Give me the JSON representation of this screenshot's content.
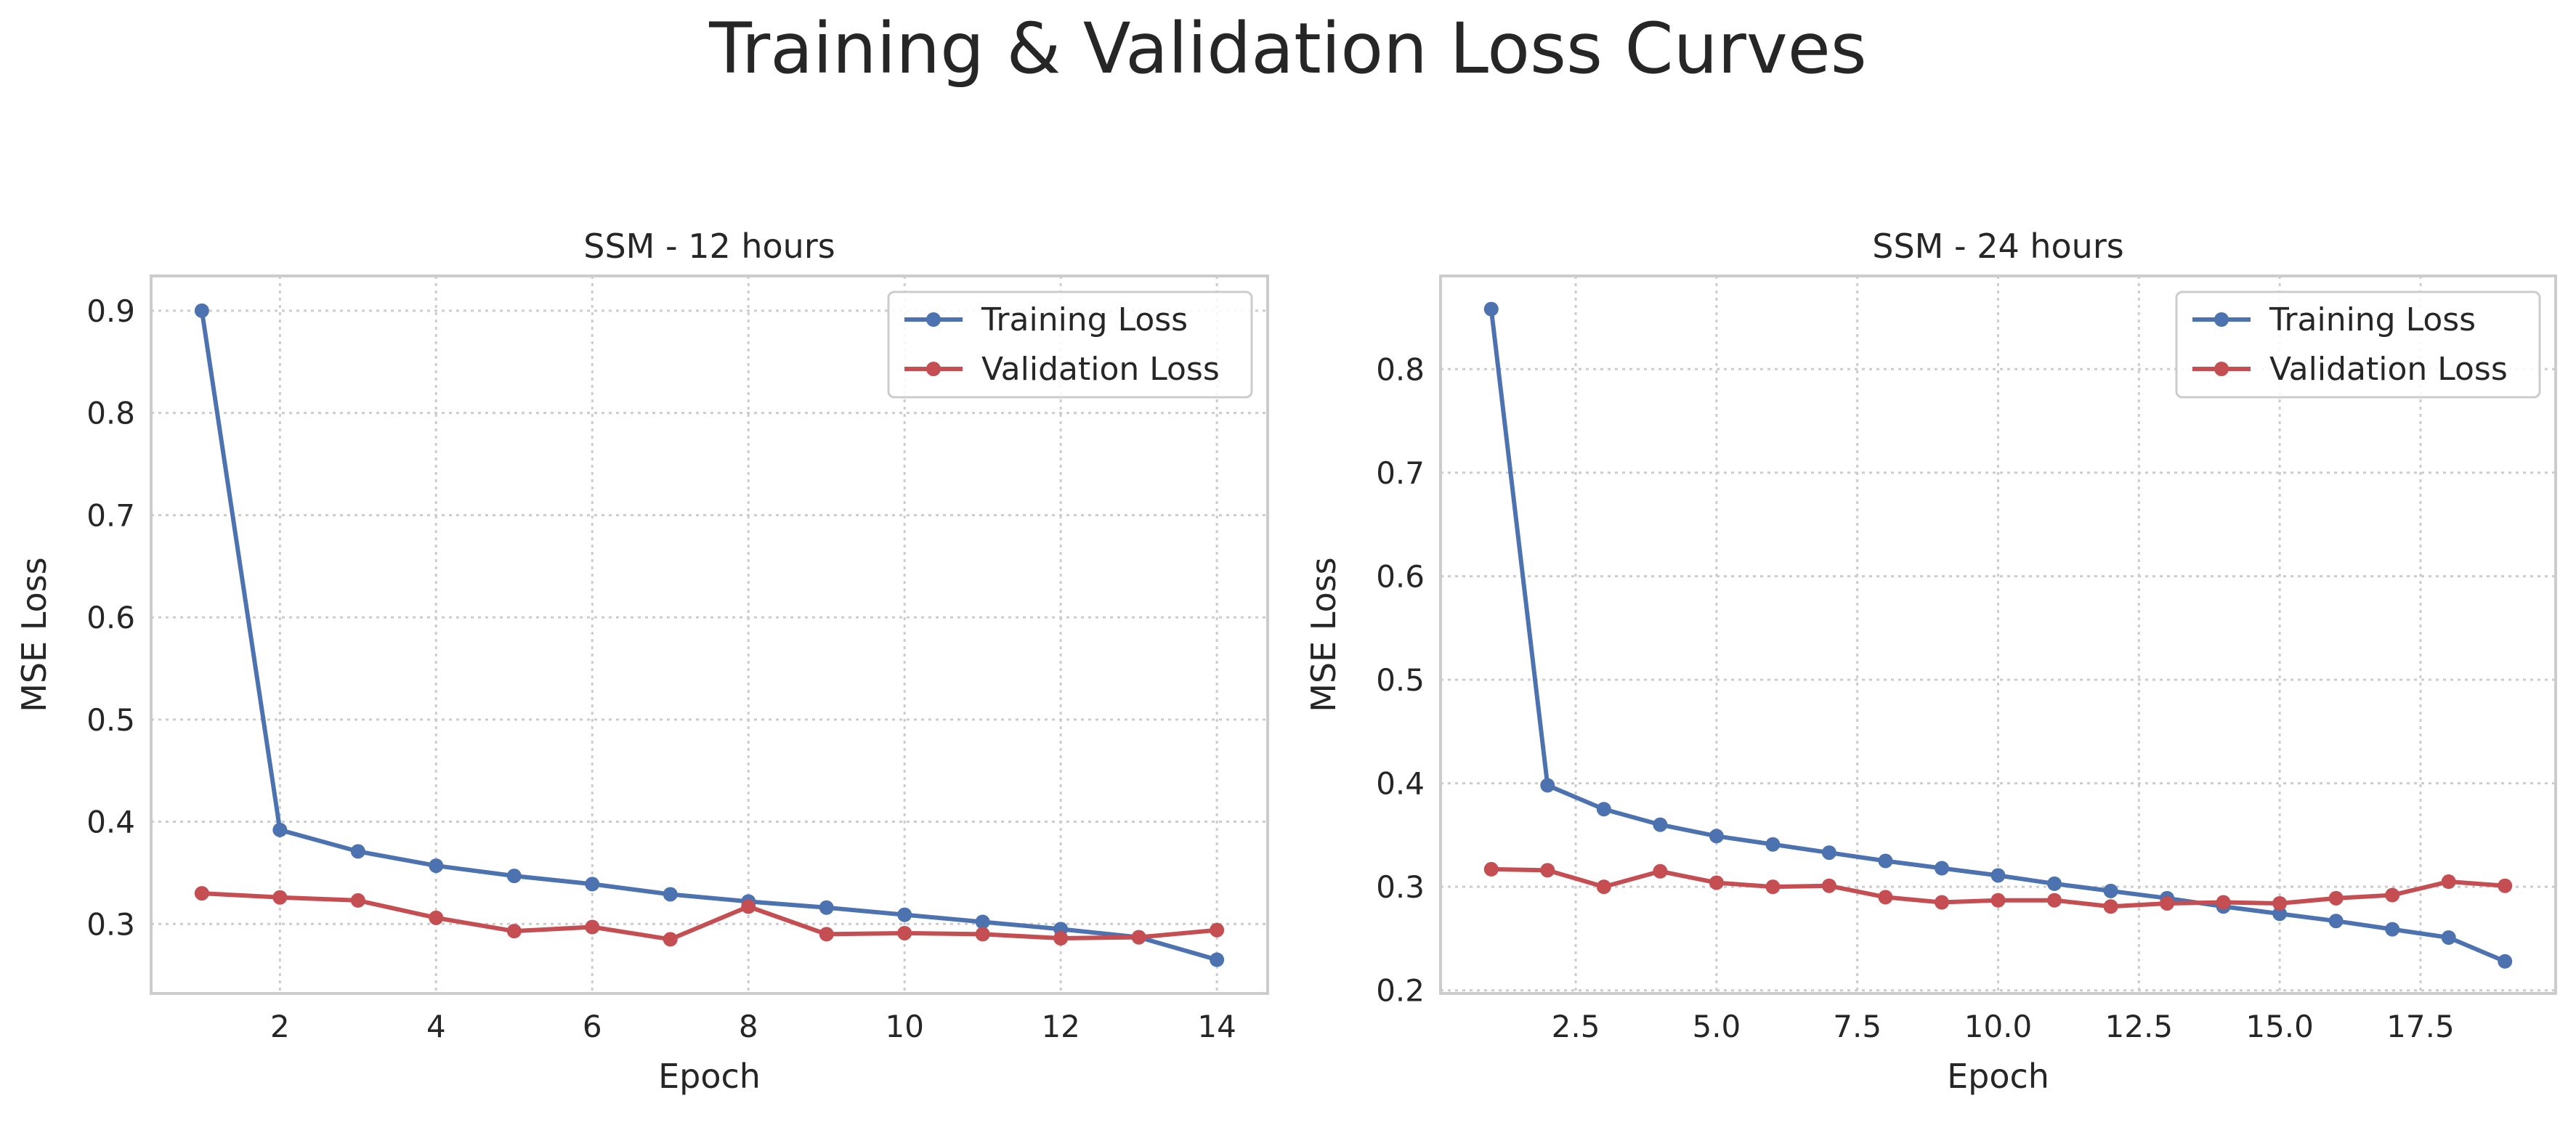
{
  "title": "Training & Validation Loss Curves",
  "colors": {
    "training": "#4c72b0",
    "validation": "#c44e52",
    "grid": "#cccccc",
    "frame": "#cccccc"
  },
  "chart_data": [
    {
      "type": "line",
      "title": "SSM - 12 hours",
      "xlabel": "Epoch",
      "ylabel": "MSE Loss",
      "xlim": [
        0.35,
        14.65
      ],
      "ylim": [
        0.232,
        0.934
      ],
      "xticks": [
        2,
        4,
        6,
        8,
        10,
        12,
        14
      ],
      "xtick_labels": [
        "2",
        "4",
        "6",
        "8",
        "10",
        "12",
        "14"
      ],
      "yticks": [
        0.3,
        0.4,
        0.5,
        0.6,
        0.7,
        0.8,
        0.9
      ],
      "ytick_labels": [
        "0.3",
        "0.4",
        "0.5",
        "0.6",
        "0.7",
        "0.8",
        "0.9"
      ],
      "grid": true,
      "legend": "top-right",
      "x": [
        1,
        2,
        3,
        4,
        5,
        6,
        7,
        8,
        9,
        10,
        11,
        12,
        13,
        14
      ],
      "series": [
        {
          "name": "Training Loss",
          "color": "#4c72b0",
          "values": [
            0.9,
            0.392,
            0.371,
            0.357,
            0.347,
            0.339,
            0.329,
            0.322,
            0.316,
            0.309,
            0.302,
            0.295,
            0.287,
            0.265
          ]
        },
        {
          "name": "Validation Loss",
          "color": "#c44e52",
          "values": [
            0.33,
            0.326,
            0.323,
            0.306,
            0.293,
            0.297,
            0.285,
            0.317,
            0.29,
            0.291,
            0.29,
            0.286,
            0.287,
            0.294
          ]
        }
      ]
    },
    {
      "type": "line",
      "title": "SSM - 24 hours",
      "xlabel": "Epoch",
      "ylabel": "MSE Loss",
      "xlim": [
        0.1,
        19.9
      ],
      "ylim": [
        0.197,
        0.89
      ],
      "xticks": [
        2.5,
        5.0,
        7.5,
        10.0,
        12.5,
        15.0,
        17.5
      ],
      "xtick_labels": [
        "2.5",
        "5.0",
        "7.5",
        "10.0",
        "12.5",
        "15.0",
        "17.5"
      ],
      "yticks": [
        0.2,
        0.3,
        0.4,
        0.5,
        0.6,
        0.7,
        0.8
      ],
      "ytick_labels": [
        "0.2",
        "0.3",
        "0.4",
        "0.5",
        "0.6",
        "0.7",
        "0.8"
      ],
      "grid": true,
      "legend": "top-right",
      "x": [
        1,
        2,
        3,
        4,
        5,
        6,
        7,
        8,
        9,
        10,
        11,
        12,
        13,
        14,
        15,
        16,
        17,
        18,
        19
      ],
      "series": [
        {
          "name": "Training Loss",
          "color": "#4c72b0",
          "values": [
            0.858,
            0.398,
            0.375,
            0.36,
            0.349,
            0.341,
            0.333,
            0.325,
            0.318,
            0.311,
            0.303,
            0.296,
            0.289,
            0.281,
            0.274,
            0.267,
            0.259,
            0.251,
            0.228
          ]
        },
        {
          "name": "Validation Loss",
          "color": "#c44e52",
          "values": [
            0.317,
            0.316,
            0.3,
            0.315,
            0.304,
            0.3,
            0.301,
            0.29,
            0.285,
            0.287,
            0.287,
            0.281,
            0.284,
            0.285,
            0.284,
            0.289,
            0.292,
            0.305,
            0.301
          ]
        }
      ]
    }
  ]
}
